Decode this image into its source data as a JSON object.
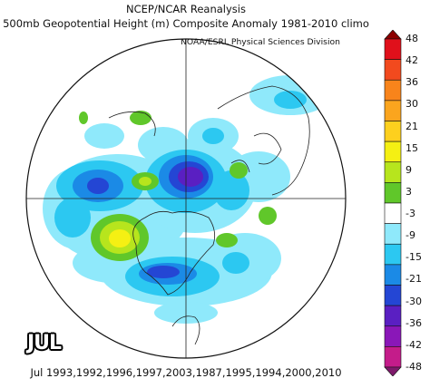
{
  "title_line1": "NCEP/NCAR Reanalysis",
  "title_line2": "500mb Geopotential Height (m) Composite Anomaly 1981-2010 climo",
  "credit": "NOAA/ESRL Physical Sciences Division",
  "month_label": "JUL",
  "years_label": "Jul 1993,1992,1996,1997,2003,1987,1995,1994,2000,2010",
  "colorbar": {
    "levels": [
      "48",
      "42",
      "36",
      "30",
      "21",
      "15",
      "9",
      "3",
      "-3",
      "-9",
      "-15",
      "-21",
      "-30",
      "-36",
      "-42",
      "-48"
    ],
    "colors": [
      "#8b0000",
      "#e0101b",
      "#f24a1e",
      "#f8841b",
      "#fba51e",
      "#fdd01e",
      "#f5f013",
      "#b7e51d",
      "#60c72a",
      "#ffffff",
      "#8fe9fb",
      "#2cc8f1",
      "#1b8ae6",
      "#2446d4",
      "#5a1fc2",
      "#8a17b8",
      "#c41c8a",
      "#7e1a6b"
    ]
  }
}
